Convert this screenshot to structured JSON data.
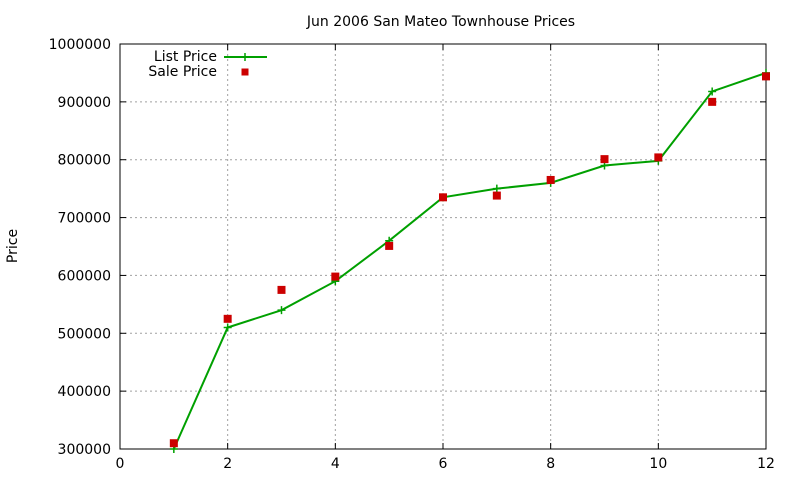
{
  "chart_data": {
    "type": "line",
    "title": "Jun 2006 San Mateo Townhouse Prices",
    "xlabel": "",
    "ylabel": "Price",
    "xlim": [
      0,
      12
    ],
    "ylim": [
      300000,
      1000000
    ],
    "xticks": [
      0,
      2,
      4,
      6,
      8,
      10,
      12
    ],
    "yticks": [
      300000,
      400000,
      500000,
      600000,
      700000,
      800000,
      900000,
      1000000
    ],
    "grid": true,
    "legend_position": "top-left",
    "series": [
      {
        "name": "List Price",
        "style": "line-with-plus-markers",
        "color": "#00a000",
        "x": [
          1,
          2,
          3,
          4,
          5,
          6,
          7,
          8,
          9,
          10,
          11,
          12
        ],
        "y": [
          300000,
          510000,
          540000,
          590000,
          660000,
          735000,
          750000,
          760000,
          790000,
          798000,
          918000,
          950000
        ]
      },
      {
        "name": "Sale Price",
        "style": "square-markers",
        "color": "#cc0000",
        "x": [
          1,
          2,
          3,
          4,
          5,
          6,
          7,
          8,
          9,
          10,
          11,
          12
        ],
        "y": [
          310000,
          525000,
          575000,
          598000,
          651000,
          735000,
          738000,
          765000,
          801000,
          804000,
          900000,
          944000
        ]
      }
    ]
  }
}
